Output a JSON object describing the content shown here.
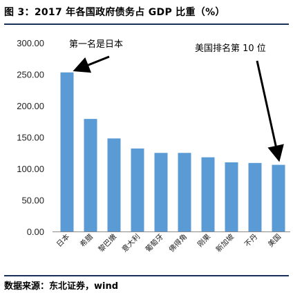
{
  "figure": {
    "title": "图 3：2017 年各国政府债务占 GDP 比重（%）",
    "source": "数据来源：东北证券，wind"
  },
  "colors": {
    "bar": "#5b9bd5",
    "rule": "#1a2e5a",
    "axis": "#888888"
  },
  "chart_data": {
    "type": "bar",
    "categories": [
      "日本",
      "希腊",
      "黎巴嫩",
      "意大利",
      "葡萄牙",
      "佛得角",
      "刚果",
      "新加坡",
      "不丹",
      "美国"
    ],
    "values": [
      253,
      179,
      148,
      132,
      125,
      125,
      118,
      110,
      109,
      106
    ],
    "ylim": [
      0,
      300
    ],
    "yticks": [
      "0.00",
      "50.00",
      "100.00",
      "150.00",
      "200.00",
      "250.00",
      "300.00"
    ],
    "grid": false,
    "xlabel": "",
    "ylabel": "",
    "annotations": [
      {
        "text": "第一名是日本",
        "target_category": "日本"
      },
      {
        "text": "美国排名第 10 位",
        "target_category": "美国"
      }
    ]
  }
}
